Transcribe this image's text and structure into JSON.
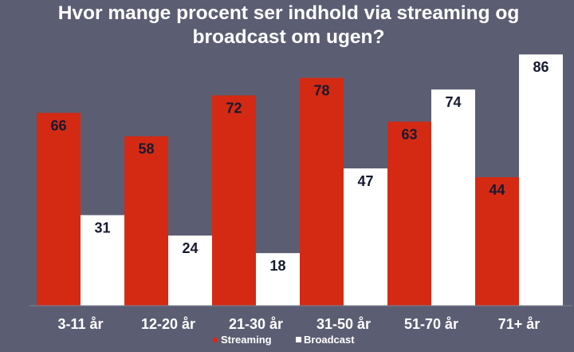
{
  "chart_data": {
    "type": "bar",
    "title": "Hvor mange procent ser indhold via streaming og broadcast om ugen?",
    "title_lines": [
      "Hvor mange procent ser indhold via streaming og",
      "broadcast om ugen?"
    ],
    "categories": [
      "3-11 år",
      "12-20 år",
      "21-30 år",
      "31-50 år",
      "51-70 år",
      "71+ år"
    ],
    "series": [
      {
        "name": "Streaming",
        "values": [
          66,
          58,
          72,
          78,
          63,
          44
        ],
        "color": "#d42a14"
      },
      {
        "name": "Broadcast",
        "values": [
          31,
          24,
          18,
          47,
          74,
          86
        ],
        "color": "#ffffff"
      }
    ],
    "ylim": [
      0,
      100
    ],
    "xlabel": "",
    "ylabel": "",
    "grid": false,
    "legend_position": "bottom-center",
    "background_color": "#5b5e73",
    "label_color": "#161a2e"
  }
}
